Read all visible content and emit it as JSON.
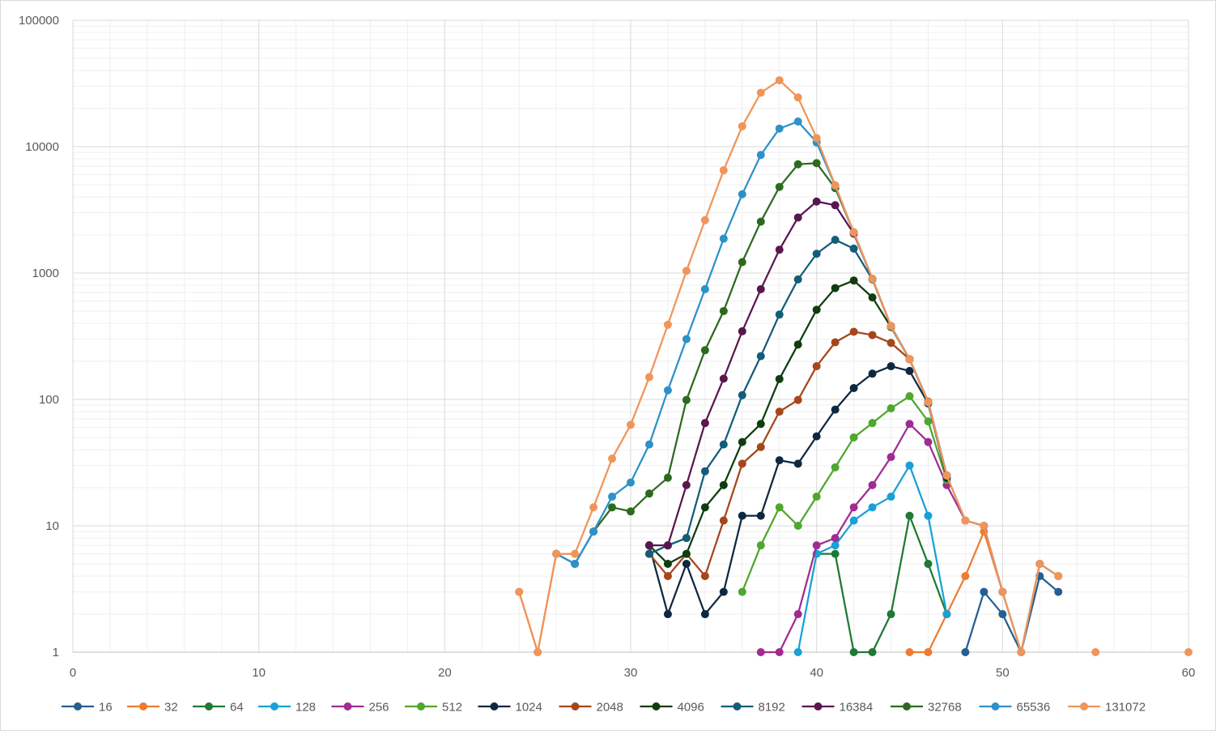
{
  "chart_data": {
    "type": "line",
    "title": "",
    "xlabel": "",
    "ylabel": "",
    "y_scale": "log",
    "xlim": [
      0,
      60
    ],
    "ylim": [
      1,
      100000
    ],
    "grid": true,
    "legend_position": "bottom",
    "x_ticks": [
      "0",
      "10",
      "20",
      "30",
      "40",
      "50",
      "60"
    ],
    "y_ticks": [
      "1",
      "10",
      "100",
      "1000",
      "10000",
      "100000"
    ],
    "series": [
      {
        "name": "16",
        "color": "#255E91",
        "points": [
          [
            26,
            6
          ],
          [
            27,
            5
          ],
          [
            28,
            9
          ],
          [
            31,
            6
          ],
          [
            32,
            7
          ],
          [
            33,
            8
          ],
          [
            48,
            1
          ],
          [
            49,
            3
          ],
          [
            50,
            2
          ],
          [
            51,
            1
          ],
          [
            52,
            4
          ],
          [
            53,
            3
          ]
        ]
      },
      {
        "name": "32",
        "color": "#ED7D31",
        "points": [
          [
            24,
            3
          ],
          [
            25,
            1
          ],
          [
            26,
            6
          ],
          [
            27,
            6
          ],
          [
            45,
            1
          ],
          [
            46,
            1
          ],
          [
            47,
            2
          ],
          [
            48,
            4
          ],
          [
            49,
            9
          ],
          [
            50,
            3
          ],
          [
            51,
            1
          ],
          [
            52,
            5
          ],
          [
            53,
            4
          ]
        ]
      },
      {
        "name": "64",
        "color": "#1E7A34",
        "points": [
          [
            40,
            6
          ],
          [
            41,
            6
          ],
          [
            42,
            1
          ],
          [
            43,
            1
          ],
          [
            44,
            2
          ],
          [
            45,
            12
          ],
          [
            46,
            5
          ],
          [
            47,
            2
          ]
        ]
      },
      {
        "name": "128",
        "color": "#17A1D6",
        "points": [
          [
            39,
            1
          ],
          [
            40,
            6
          ],
          [
            41,
            7
          ],
          [
            42,
            11
          ],
          [
            43,
            14
          ],
          [
            44,
            17
          ],
          [
            45,
            30
          ],
          [
            46,
            12
          ],
          [
            47,
            2
          ]
        ]
      },
      {
        "name": "256",
        "color": "#A02B93",
        "points": [
          [
            37,
            1
          ],
          [
            38,
            1
          ],
          [
            39,
            2
          ],
          [
            40,
            7
          ],
          [
            41,
            8
          ],
          [
            42,
            14
          ],
          [
            43,
            21
          ],
          [
            44,
            35
          ],
          [
            45,
            64
          ],
          [
            46,
            46
          ],
          [
            47,
            21
          ],
          [
            48,
            11
          ],
          [
            49,
            10
          ],
          [
            50,
            3
          ]
        ]
      },
      {
        "name": "512",
        "color": "#4EA72E",
        "points": [
          [
            36,
            3
          ],
          [
            37,
            7
          ],
          [
            38,
            14
          ],
          [
            39,
            10
          ],
          [
            40,
            17
          ],
          [
            41,
            29
          ],
          [
            42,
            50
          ],
          [
            43,
            65
          ],
          [
            44,
            85
          ],
          [
            45,
            106
          ],
          [
            46,
            67
          ],
          [
            47,
            23
          ]
        ]
      },
      {
        "name": "1024",
        "color": "#0E2841",
        "points": [
          [
            31,
            7
          ],
          [
            32,
            2
          ],
          [
            33,
            5
          ],
          [
            34,
            2
          ],
          [
            35,
            3
          ],
          [
            36,
            12
          ],
          [
            37,
            12
          ],
          [
            38,
            33
          ],
          [
            39,
            31
          ],
          [
            40,
            51
          ],
          [
            41,
            83
          ],
          [
            42,
            123
          ],
          [
            43,
            160
          ],
          [
            44,
            183
          ],
          [
            45,
            168
          ],
          [
            46,
            93
          ],
          [
            47,
            24
          ]
        ]
      },
      {
        "name": "2048",
        "color": "#A5461B",
        "points": [
          [
            31,
            6
          ],
          [
            32,
            4
          ],
          [
            33,
            6
          ],
          [
            34,
            4
          ],
          [
            35,
            11
          ],
          [
            36,
            31
          ],
          [
            37,
            42
          ],
          [
            38,
            80
          ],
          [
            39,
            99
          ],
          [
            40,
            183
          ],
          [
            41,
            283
          ],
          [
            42,
            343
          ],
          [
            43,
            323
          ],
          [
            44,
            280
          ],
          [
            45,
            208
          ],
          [
            46,
            96
          ],
          [
            47,
            25
          ]
        ]
      },
      {
        "name": "4096",
        "color": "#0F3D0F",
        "points": [
          [
            31,
            7
          ],
          [
            32,
            5
          ],
          [
            33,
            6
          ],
          [
            34,
            14
          ],
          [
            35,
            21
          ],
          [
            36,
            46
          ],
          [
            37,
            64
          ],
          [
            38,
            145
          ],
          [
            39,
            272
          ],
          [
            40,
            512
          ],
          [
            41,
            760
          ],
          [
            42,
            873
          ],
          [
            43,
            641
          ],
          [
            44,
            374
          ],
          [
            45,
            208
          ],
          [
            46,
            95
          ],
          [
            47,
            25
          ]
        ]
      },
      {
        "name": "8192",
        "color": "#135D7A",
        "points": [
          [
            31,
            6
          ],
          [
            32,
            7
          ],
          [
            33,
            8
          ],
          [
            34,
            27
          ],
          [
            35,
            44
          ],
          [
            36,
            108
          ],
          [
            37,
            220
          ],
          [
            38,
            469
          ],
          [
            39,
            890
          ],
          [
            40,
            1420
          ],
          [
            41,
            1830
          ],
          [
            42,
            1560
          ],
          [
            43,
            890
          ],
          [
            44,
            380
          ],
          [
            45,
            208
          ],
          [
            46,
            95
          ],
          [
            47,
            25
          ]
        ]
      },
      {
        "name": "16384",
        "color": "#59164F",
        "points": [
          [
            31,
            7
          ],
          [
            32,
            7
          ],
          [
            33,
            21
          ],
          [
            34,
            65
          ],
          [
            35,
            146
          ],
          [
            36,
            346
          ],
          [
            37,
            745
          ],
          [
            38,
            1530
          ],
          [
            39,
            2750
          ],
          [
            40,
            3680
          ],
          [
            41,
            3440
          ],
          [
            42,
            2050
          ],
          [
            43,
            900
          ],
          [
            44,
            380
          ],
          [
            45,
            208
          ],
          [
            46,
            95
          ],
          [
            47,
            25
          ]
        ]
      },
      {
        "name": "32768",
        "color": "#2D6A1F",
        "points": [
          [
            28,
            9
          ],
          [
            29,
            14
          ],
          [
            30,
            13
          ],
          [
            31,
            18
          ],
          [
            32,
            24
          ],
          [
            33,
            99
          ],
          [
            34,
            245
          ],
          [
            35,
            500
          ],
          [
            36,
            1220
          ],
          [
            37,
            2550
          ],
          [
            38,
            4800
          ],
          [
            39,
            7250
          ],
          [
            40,
            7400
          ],
          [
            41,
            4700
          ],
          [
            42,
            2100
          ],
          [
            43,
            900
          ],
          [
            44,
            380
          ],
          [
            45,
            208
          ],
          [
            46,
            95
          ],
          [
            47,
            25
          ]
        ]
      },
      {
        "name": "65536",
        "color": "#2E91C8",
        "points": [
          [
            26,
            6
          ],
          [
            27,
            5
          ],
          [
            28,
            9
          ],
          [
            29,
            17
          ],
          [
            30,
            22
          ],
          [
            31,
            44
          ],
          [
            32,
            118
          ],
          [
            33,
            300
          ],
          [
            34,
            745
          ],
          [
            35,
            1870
          ],
          [
            36,
            4200
          ],
          [
            37,
            8600
          ],
          [
            38,
            13900
          ],
          [
            39,
            15800
          ],
          [
            40,
            10800
          ],
          [
            41,
            4900
          ],
          [
            42,
            2100
          ],
          [
            43,
            900
          ],
          [
            44,
            380
          ],
          [
            45,
            208
          ],
          [
            46,
            95
          ],
          [
            47,
            25
          ],
          [
            48,
            11
          ],
          [
            49,
            10
          ],
          [
            50,
            3
          ],
          [
            51,
            1
          ],
          [
            52,
            5
          ],
          [
            53,
            4
          ]
        ]
      },
      {
        "name": "131072",
        "color": "#F0955A",
        "points": [
          [
            24,
            3
          ],
          [
            25,
            1
          ],
          [
            26,
            6
          ],
          [
            27,
            6
          ],
          [
            28,
            14
          ],
          [
            29,
            34
          ],
          [
            30,
            63
          ],
          [
            31,
            150
          ],
          [
            32,
            390
          ],
          [
            33,
            1040
          ],
          [
            34,
            2620
          ],
          [
            35,
            6500
          ],
          [
            36,
            14500
          ],
          [
            37,
            26700
          ],
          [
            38,
            33500
          ],
          [
            39,
            24500
          ],
          [
            40,
            11700
          ],
          [
            41,
            4950
          ],
          [
            42,
            2100
          ],
          [
            43,
            900
          ],
          [
            44,
            380
          ],
          [
            45,
            208
          ],
          [
            46,
            95
          ],
          [
            47,
            25
          ],
          [
            48,
            11
          ],
          [
            49,
            10
          ],
          [
            50,
            3
          ],
          [
            51,
            1
          ],
          [
            52,
            5
          ],
          [
            53,
            4
          ],
          [
            55,
            1
          ],
          [
            60,
            1
          ]
        ]
      }
    ]
  }
}
